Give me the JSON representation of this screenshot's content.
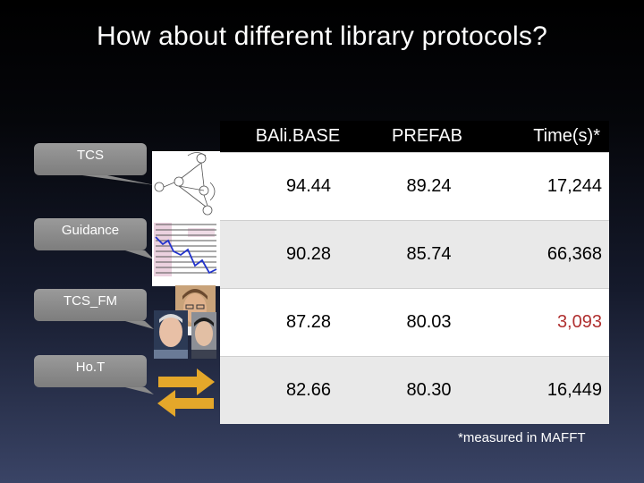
{
  "title": "How about different library protocols?",
  "callouts": [
    "TCS",
    "Guidance",
    "TCS_FM",
    "Ho.T"
  ],
  "table": {
    "headers": [
      "BAli.BASE",
      "PREFAB",
      "Time(s)*"
    ],
    "rows": [
      [
        "94.44",
        "89.24",
        "17,244"
      ],
      [
        "90.28",
        "85.74",
        "66,368"
      ],
      [
        "87.28",
        "80.03",
        "3,093"
      ],
      [
        "82.66",
        "80.30",
        "16,449"
      ]
    ]
  },
  "colors": {
    "highlight": "#b03030",
    "arrow": "#e4a72a",
    "callout": "#8c8c8c"
  },
  "footnote": "*measured in MAFFT"
}
